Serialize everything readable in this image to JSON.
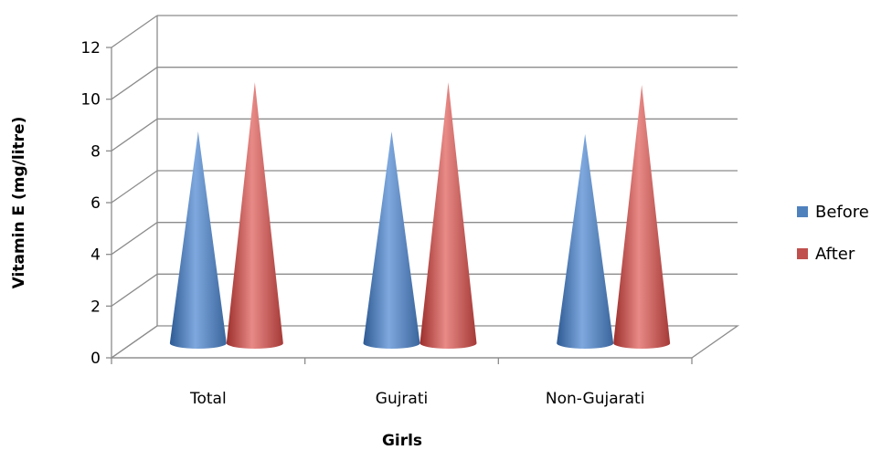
{
  "chart_data": {
    "type": "bar",
    "shape": "cone-3d",
    "title": "",
    "xlabel": "Girls",
    "ylabel": "Vitamin E (mg/litre)",
    "ylim": [
      0,
      12
    ],
    "yticks": [
      0,
      2,
      4,
      6,
      8,
      10,
      12
    ],
    "grid": true,
    "legend_position": "right",
    "categories": [
      "Total",
      "Gujrati",
      "Non-Gujarati"
    ],
    "series": [
      {
        "name": "Before",
        "color": "#4F81BD",
        "values": [
          8.4,
          8.4,
          8.3
        ]
      },
      {
        "name": "After",
        "color": "#C0504D",
        "values": [
          10.3,
          10.3,
          10.2
        ]
      }
    ]
  }
}
